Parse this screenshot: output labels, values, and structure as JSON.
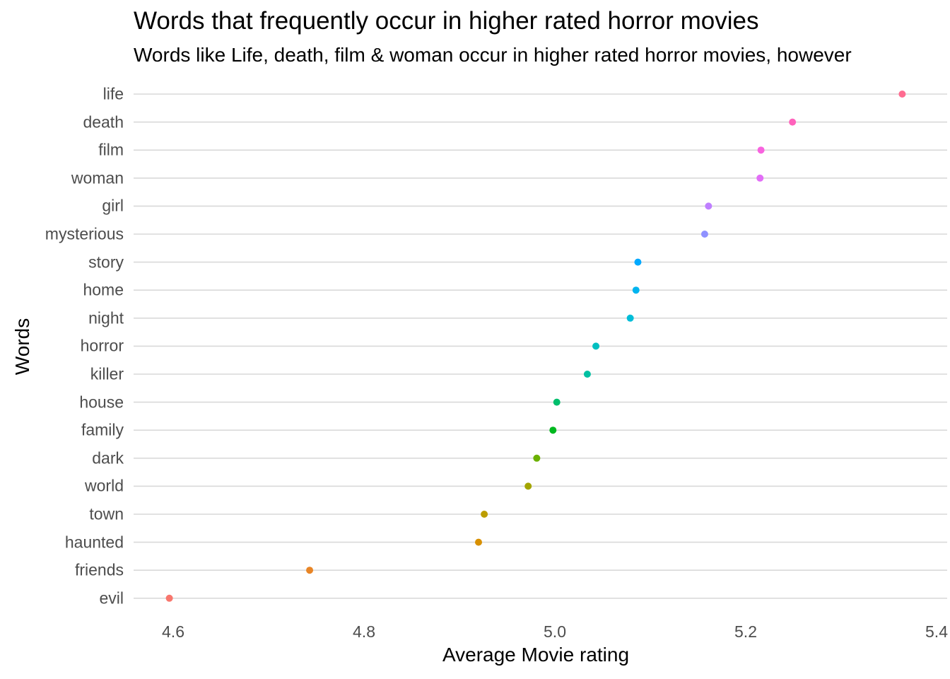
{
  "chart_data": {
    "type": "scatter",
    "subtype": "dot-plot",
    "title": "Words that frequently occur in higher rated horror movies",
    "subtitle": "Words like Life, death, film & woman occur in higher rated horror movies, however",
    "xlabel": "Average Movie rating",
    "ylabel": "Words",
    "xlim": [
      4.56,
      5.4
    ],
    "x_ticks": [
      "4.6",
      "4.8",
      "5.0",
      "5.2",
      "5.4"
    ],
    "x_tick_values": [
      4.6,
      4.8,
      5.0,
      5.2,
      5.4
    ],
    "grid": "horizontal major gridlines",
    "legend": "none",
    "categories": [
      "life",
      "death",
      "film",
      "woman",
      "girl",
      "mysterious",
      "story",
      "home",
      "night",
      "horror",
      "killer",
      "house",
      "family",
      "dark",
      "world",
      "town",
      "haunted",
      "friends",
      "evil"
    ],
    "values": [
      5.364,
      5.249,
      5.216,
      5.215,
      5.161,
      5.157,
      5.087,
      5.085,
      5.079,
      5.043,
      5.034,
      5.002,
      4.998,
      4.981,
      4.972,
      4.926,
      4.92,
      4.743,
      4.596
    ],
    "colors": [
      "#FF6C91",
      "#FF62BC",
      "#F863DF",
      "#E26EF7",
      "#BF7FFF",
      "#8F91FF",
      "#00A9FF",
      "#00B4EF",
      "#00BDD8",
      "#00BFC0",
      "#00C0A2",
      "#00BE6C",
      "#00B81F",
      "#6BB100",
      "#A3A500",
      "#BC9D00",
      "#D89000",
      "#E88526",
      "#F8766D"
    ]
  }
}
